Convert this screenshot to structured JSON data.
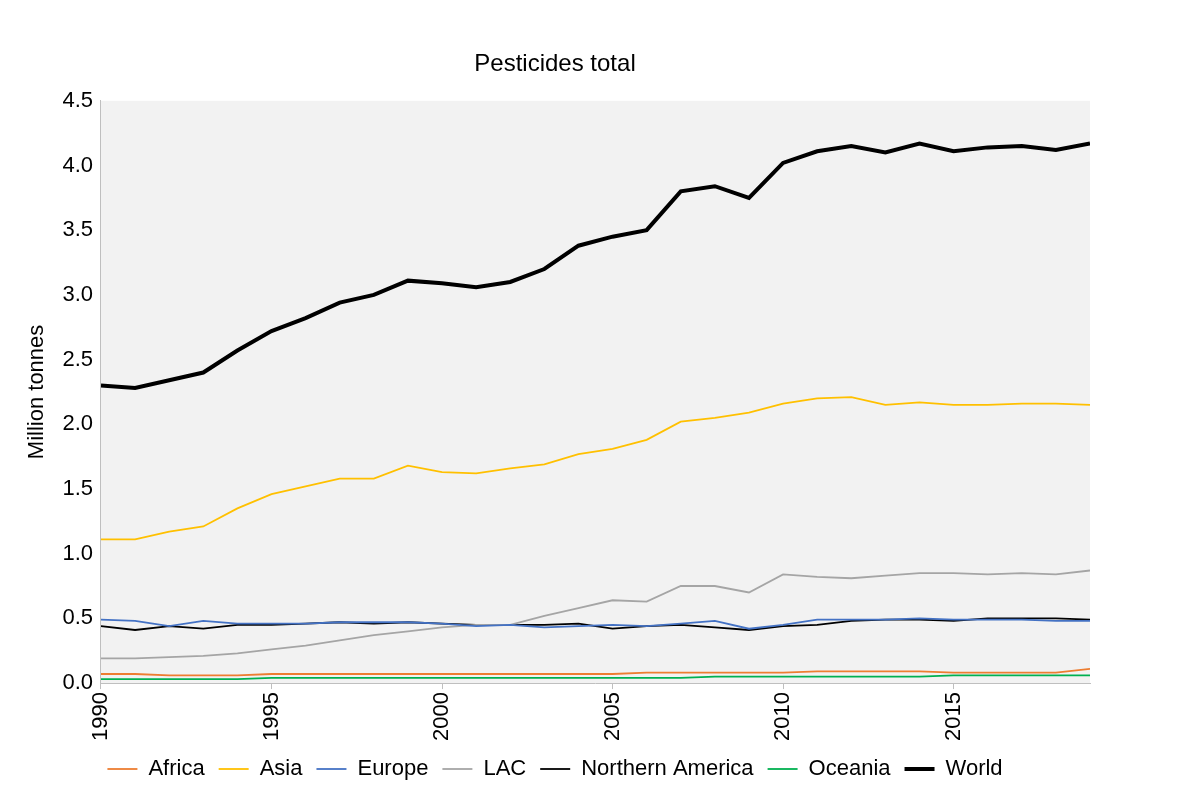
{
  "chart_data": {
    "type": "line",
    "title": "Pesticides total",
    "y_label": "Million tonnes",
    "x": [
      1990,
      1991,
      1992,
      1993,
      1994,
      1995,
      1996,
      1997,
      1998,
      1999,
      2000,
      2001,
      2002,
      2003,
      2004,
      2005,
      2006,
      2007,
      2008,
      2009,
      2010,
      2011,
      2012,
      2013,
      2014,
      2015,
      2016,
      2017,
      2018,
      2019
    ],
    "xlim": [
      1990,
      2019
    ],
    "xticks": [
      1990,
      1995,
      2000,
      2005,
      2010,
      2015
    ],
    "ylim": [
      0,
      4.5
    ],
    "yticks": [
      {
        "value": 0,
        "label": "0.0"
      },
      0.5,
      {
        "value": 1,
        "label": "1.0"
      },
      1.5,
      {
        "value": 2,
        "label": "2.0"
      },
      2.5,
      {
        "value": 3,
        "label": "3.0"
      },
      3.5,
      {
        "value": 4,
        "label": "4.0"
      },
      4.5
    ],
    "grid": false,
    "legend": "bottom",
    "series": [
      {
        "name": "Africa",
        "color": "#ed7d31",
        "line_style": "solid",
        "values": [
          0.07,
          0.07,
          0.06,
          0.06,
          0.06,
          0.07,
          0.07,
          0.07,
          0.07,
          0.07,
          0.07,
          0.07,
          0.07,
          0.07,
          0.07,
          0.07,
          0.08,
          0.08,
          0.08,
          0.08,
          0.08,
          0.09,
          0.09,
          0.09,
          0.09,
          0.08,
          0.08,
          0.08,
          0.08,
          0.11
        ]
      },
      {
        "name": "Asia",
        "color": "#ffc000",
        "line_style": "solid",
        "values": [
          1.11,
          1.11,
          1.17,
          1.21,
          1.35,
          1.46,
          1.52,
          1.58,
          1.58,
          1.68,
          1.63,
          1.62,
          1.66,
          1.69,
          1.77,
          1.81,
          1.88,
          2.02,
          2.05,
          2.09,
          2.16,
          2.2,
          2.21,
          2.15,
          2.17,
          2.15,
          2.15,
          2.16,
          2.16,
          2.15
        ]
      },
      {
        "name": "Europe",
        "color": "#4472c4",
        "line_style": "solid",
        "values": [
          0.49,
          0.48,
          0.44,
          0.48,
          0.46,
          0.46,
          0.46,
          0.47,
          0.47,
          0.47,
          0.46,
          0.44,
          0.45,
          0.43,
          0.44,
          0.45,
          0.44,
          0.46,
          0.48,
          0.42,
          0.45,
          0.49,
          0.49,
          0.49,
          0.5,
          0.49,
          0.49,
          0.49,
          0.48,
          0.48
        ]
      },
      {
        "name": "LAC",
        "color": "#a5a5a5",
        "line_style": "solid",
        "values": [
          0.19,
          0.19,
          0.2,
          0.21,
          0.23,
          0.26,
          0.29,
          0.33,
          0.37,
          0.4,
          0.43,
          0.45,
          0.45,
          0.52,
          0.58,
          0.64,
          0.63,
          0.75,
          0.75,
          0.7,
          0.84,
          0.82,
          0.81,
          0.83,
          0.85,
          0.85,
          0.84,
          0.85,
          0.84,
          0.87
        ]
      },
      {
        "name": "Northern America",
        "color": "#000000",
        "line_style": "solid",
        "values": [
          0.44,
          0.41,
          0.44,
          0.42,
          0.45,
          0.45,
          0.46,
          0.47,
          0.46,
          0.47,
          0.46,
          0.45,
          0.45,
          0.45,
          0.46,
          0.42,
          0.44,
          0.45,
          0.43,
          0.41,
          0.44,
          0.45,
          0.48,
          0.49,
          0.49,
          0.48,
          0.5,
          0.5,
          0.5,
          0.49
        ]
      },
      {
        "name": "Oceania",
        "color": "#00b050",
        "line_style": "solid",
        "values": [
          0.03,
          0.03,
          0.03,
          0.03,
          0.03,
          0.04,
          0.04,
          0.04,
          0.04,
          0.04,
          0.04,
          0.04,
          0.04,
          0.04,
          0.04,
          0.04,
          0.04,
          0.04,
          0.05,
          0.05,
          0.05,
          0.05,
          0.05,
          0.05,
          0.05,
          0.06,
          0.06,
          0.06,
          0.06,
          0.06
        ]
      },
      {
        "name": "World",
        "color": "#000000",
        "line_style": "bold",
        "values": [
          2.3,
          2.28,
          2.34,
          2.4,
          2.57,
          2.72,
          2.82,
          2.94,
          3.0,
          3.11,
          3.09,
          3.06,
          3.1,
          3.2,
          3.38,
          3.45,
          3.5,
          3.8,
          3.84,
          3.75,
          4.02,
          4.11,
          4.15,
          4.1,
          4.17,
          4.11,
          4.14,
          4.15,
          4.12,
          4.17
        ]
      }
    ]
  }
}
